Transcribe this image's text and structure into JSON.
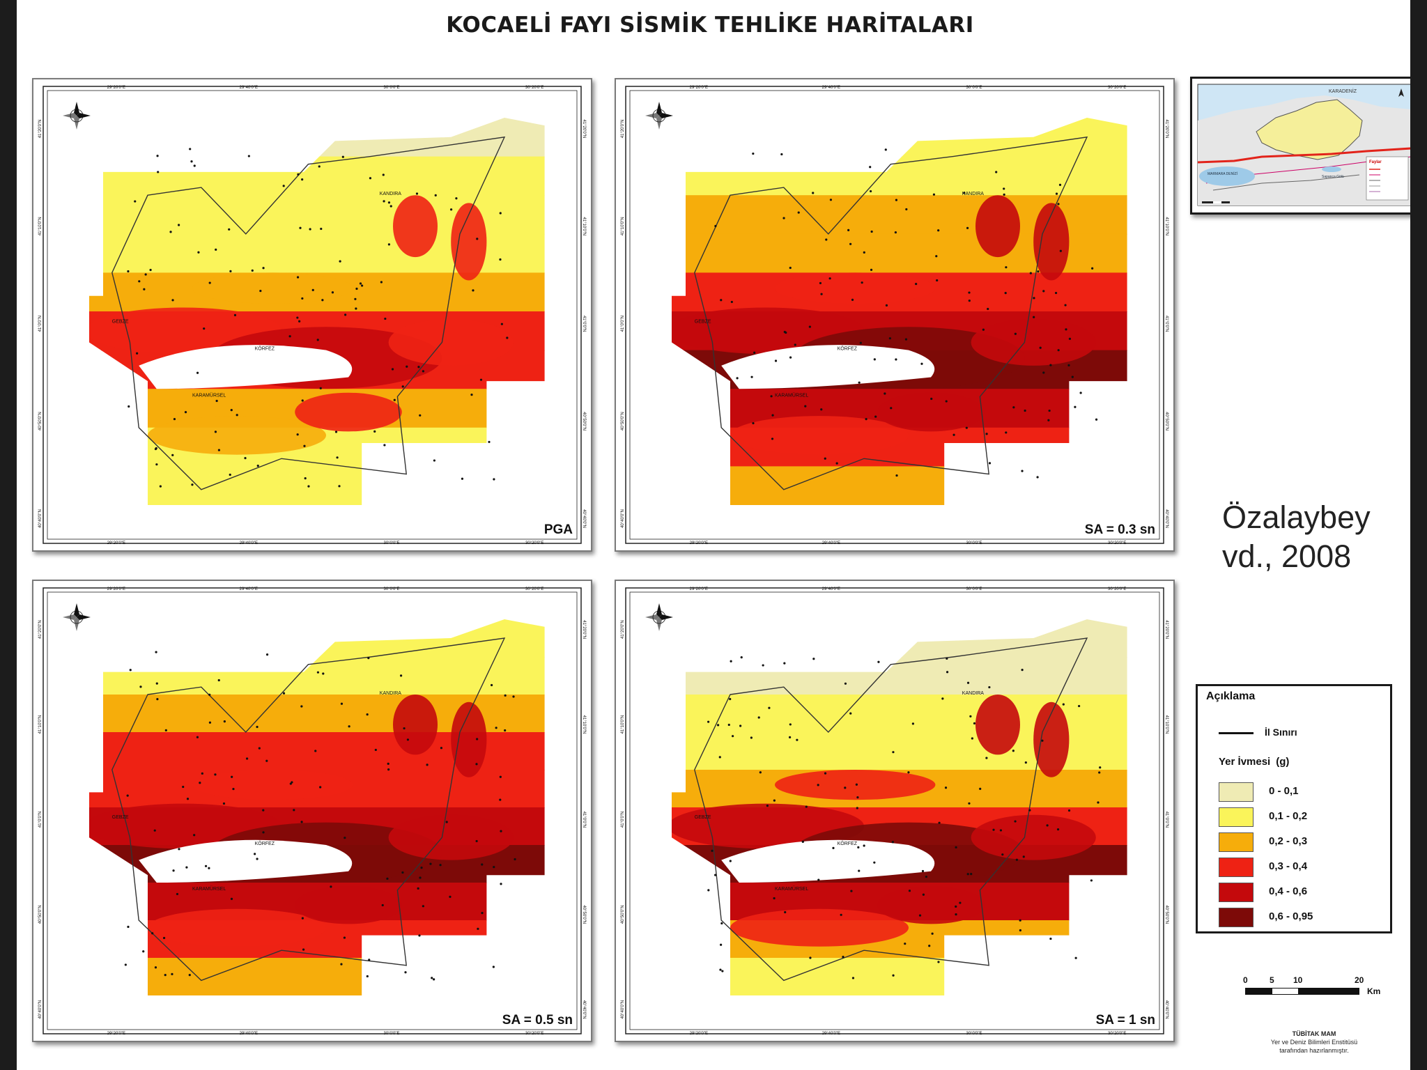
{
  "title": "KOCAELİ FAYI SİSMİK TEHLİKE HARİTALARI",
  "citation": {
    "line1": "Özalaybey",
    "line2": "vd., 2008"
  },
  "panels": [
    {
      "id": "pga",
      "label": "PGA"
    },
    {
      "id": "sa03",
      "label": "SA = 0.3 sn"
    },
    {
      "id": "sa05",
      "label": "SA = 0.5 sn"
    },
    {
      "id": "sa1",
      "label": "SA = 1 sn"
    }
  ],
  "graticule": {
    "top_labels": [
      "29°20'0\"E",
      "29°40'0\"E",
      "30°0'0\"E",
      "30°20'0\"E"
    ],
    "side_labels": [
      "41°20'0\"N",
      "41°10'0\"N",
      "41°0'0\"N",
      "40°50'0\"N",
      "40°40'0\"N"
    ]
  },
  "place_labels": {
    "kandira": "KANDIRA",
    "korfez": "KÖRFEZ",
    "karamursel": "KARAMÜRSEL",
    "gebze": "GEBZE"
  },
  "inset": {
    "sea_label": "KARADENİZ",
    "fault_legend_title": "Faylar",
    "lake_label": "Sapanca Gölü",
    "sea2_label": "MARMARA DENİZİ"
  },
  "legend": {
    "title": "Açıklama",
    "boundary_label": "İl Sınırı",
    "subtitle": "Yer İvmesi",
    "unit": "(g)",
    "items": [
      {
        "range": "0 - 0,1",
        "color": "#efebb4"
      },
      {
        "range": "0,1 - 0,2",
        "color": "#faf45a"
      },
      {
        "range": "0,2 - 0,3",
        "color": "#f6ad0b"
      },
      {
        "range": "0,3 - 0,4",
        "color": "#ee2214"
      },
      {
        "range": "0,4 - 0,6",
        "color": "#c4090c"
      },
      {
        "range": "0,6 - 0,95",
        "color": "#7d0a08"
      }
    ]
  },
  "scalebar": {
    "ticks": [
      "0",
      "5",
      "10",
      "20"
    ],
    "unit": "Km"
  },
  "credit": {
    "org": "TÜBİTAK MAM",
    "line2": "Yer ve Deniz Bilimleri Enstitüsü",
    "line3": "tarafından hazırlanmıştır."
  }
}
